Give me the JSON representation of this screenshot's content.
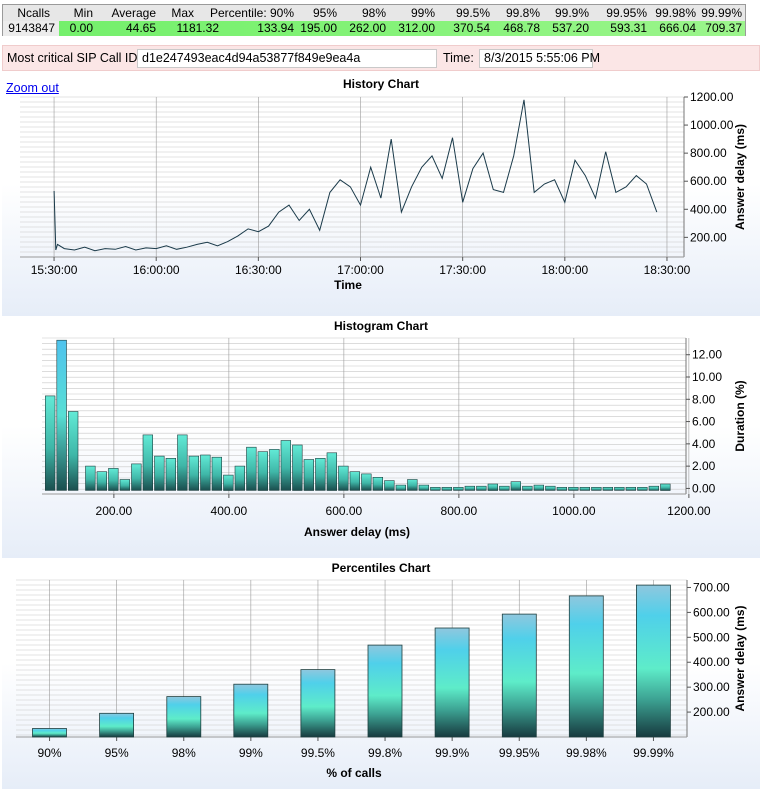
{
  "stats": {
    "headers": [
      "Ncalls",
      "Min",
      "Average",
      "Max",
      "Percentile: 90%",
      "95%",
      "98%",
      "99%",
      "99.5%",
      "99.8%",
      "99.9%",
      "99.95%",
      "99.98%",
      "99.99%"
    ],
    "values": [
      "9143847",
      "0.00",
      "44.65",
      "1181.32",
      "133.94",
      "195.00",
      "262.00",
      "312.00",
      "370.54",
      "468.78",
      "537.20",
      "593.31",
      "666.04",
      "709.37"
    ]
  },
  "sip": {
    "label": "Most critical SIP Call ID:",
    "call_id": "d1e247493eac4d94a53877f849e9ea4a",
    "time_label": "Time:",
    "time_value": "8/3/2015 5:55:06 PM"
  },
  "zoom_out": "Zoom out",
  "colors": {
    "line": "#1a3a4a",
    "bar_top": "#5fe3d2",
    "bar_bottom": "#1c4f4f",
    "peak_bar": "#4fc3ee",
    "stats_green": "#7ff274"
  },
  "chart_data": [
    {
      "type": "line",
      "title": "History Chart",
      "xlabel": "Time",
      "ylabel": "Answer delay (ms)",
      "x_ticks": [
        "15:30:00",
        "16:00:00",
        "16:30:00",
        "17:00:00",
        "17:30:00",
        "18:00:00",
        "18:30:00"
      ],
      "y_ticks": [
        "200.00",
        "400.00",
        "600.00",
        "800.00",
        "1000.00",
        "1200.00"
      ],
      "ylim": [
        60,
        1200
      ],
      "xlim_minutes": [
        -10,
        185
      ],
      "grid": true,
      "series": [
        {
          "x_minutes_from_15_30": [
            0,
            0.5,
            1,
            3,
            6,
            9,
            12,
            15,
            18,
            21,
            24,
            27,
            30,
            33,
            36,
            39,
            42,
            45,
            48,
            51,
            54,
            57,
            60,
            63,
            66,
            69,
            72,
            75,
            78,
            81,
            84,
            87,
            90,
            93,
            96,
            99,
            102,
            105,
            108,
            111,
            114,
            117,
            120,
            123,
            126,
            129,
            132,
            135,
            138,
            141,
            144,
            147,
            150,
            153,
            156,
            159,
            162,
            165,
            168,
            171,
            174,
            177
          ],
          "values": [
            530,
            110,
            150,
            120,
            110,
            130,
            105,
            120,
            115,
            135,
            110,
            125,
            120,
            140,
            115,
            130,
            150,
            165,
            140,
            170,
            210,
            260,
            240,
            280,
            380,
            430,
            320,
            400,
            250,
            520,
            610,
            560,
            430,
            700,
            480,
            900,
            380,
            560,
            700,
            780,
            620,
            910,
            450,
            690,
            800,
            540,
            520,
            780,
            1180,
            520,
            580,
            610,
            450,
            750,
            640,
            480,
            810,
            520,
            560,
            640,
            580,
            380
          ]
        }
      ]
    },
    {
      "type": "bar",
      "title": "Histogram Chart",
      "xlabel": "Answer delay (ms)",
      "ylabel": "Duration (%)",
      "x_ticks": [
        "200.00",
        "400.00",
        "600.00",
        "800.00",
        "1000.00",
        "1200.00"
      ],
      "y_ticks": [
        "0.00",
        "2.00",
        "4.00",
        "6.00",
        "8.00",
        "10.00",
        "12.00"
      ],
      "ylim": [
        -0.5,
        13.5
      ],
      "xlim": [
        75,
        1195
      ],
      "grid": true,
      "bar_width": 19,
      "x": [
        90,
        110,
        130,
        160,
        180,
        200,
        220,
        240,
        260,
        280,
        300,
        320,
        340,
        360,
        380,
        400,
        420,
        440,
        460,
        480,
        500,
        520,
        540,
        560,
        580,
        600,
        620,
        640,
        660,
        680,
        700,
        720,
        740,
        760,
        780,
        800,
        820,
        840,
        860,
        880,
        900,
        920,
        940,
        960,
        980,
        1000,
        1020,
        1040,
        1060,
        1080,
        1100,
        1120,
        1140,
        1160
      ],
      "values": [
        8.3,
        13.3,
        6.9,
        2.0,
        1.5,
        1.8,
        0.8,
        2.2,
        4.8,
        2.9,
        2.7,
        4.8,
        2.9,
        3.0,
        2.8,
        1.2,
        2.0,
        3.7,
        3.3,
        3.5,
        4.3,
        3.9,
        2.6,
        2.7,
        3.2,
        2.0,
        1.5,
        1.3,
        1.0,
        0.7,
        0.3,
        0.8,
        0.3,
        0.1,
        0.1,
        0.1,
        0.2,
        0.2,
        0.4,
        0.2,
        0.6,
        0.2,
        0.3,
        0.2,
        0.1,
        0.1,
        0.1,
        0.1,
        0.1,
        0.1,
        0.1,
        0.1,
        0.2,
        0.4
      ]
    },
    {
      "type": "bar",
      "title": "Percentiles Chart",
      "xlabel": "% of calls",
      "ylabel": "Answer delay (ms)",
      "categories": [
        "90%",
        "95%",
        "98%",
        "99%",
        "99.5%",
        "99.8%",
        "99.9%",
        "99.95%",
        "99.98%",
        "99.99%"
      ],
      "values": [
        133.94,
        195.0,
        262.0,
        312.0,
        370.54,
        468.78,
        537.2,
        593.31,
        666.04,
        709.37
      ],
      "y_ticks": [
        "200.00",
        "300.00",
        "400.00",
        "500.00",
        "600.00",
        "700.00"
      ],
      "ylim": [
        100,
        730
      ],
      "grid": true
    }
  ]
}
